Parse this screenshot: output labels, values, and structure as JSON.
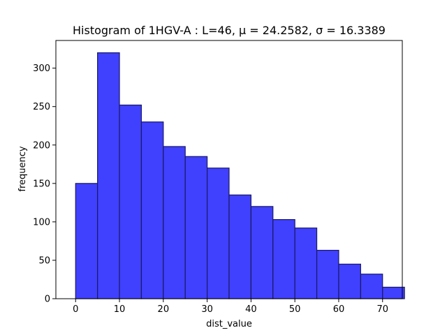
{
  "chart_data": {
    "type": "bar",
    "title": "Histogram of 1HGV-A : L=46, μ = 24.2582, σ = 16.3389",
    "xlabel": "dist_value",
    "ylabel": "frequency",
    "xlim": [
      -4.5,
      74.5
    ],
    "ylim": [
      0,
      336
    ],
    "x_ticks": [
      0,
      10,
      20,
      30,
      40,
      50,
      60,
      70
    ],
    "y_ticks": [
      0,
      50,
      100,
      150,
      200,
      250,
      300
    ],
    "bins": [
      {
        "x0": 0.0,
        "x1": 5.0,
        "value": 150
      },
      {
        "x0": 5.0,
        "x1": 10.0,
        "value": 320
      },
      {
        "x0": 10.0,
        "x1": 15.0,
        "value": 252
      },
      {
        "x0": 15.0,
        "x1": 20.0,
        "value": 230
      },
      {
        "x0": 20.0,
        "x1": 25.0,
        "value": 198
      },
      {
        "x0": 25.0,
        "x1": 30.0,
        "value": 185
      },
      {
        "x0": 30.0,
        "x1": 35.0,
        "value": 170
      },
      {
        "x0": 35.0,
        "x1": 40.0,
        "value": 135
      },
      {
        "x0": 40.0,
        "x1": 45.0,
        "value": 120
      },
      {
        "x0": 45.0,
        "x1": 50.0,
        "value": 103
      },
      {
        "x0": 50.0,
        "x1": 55.0,
        "value": 92
      },
      {
        "x0": 55.0,
        "x1": 60.0,
        "value": 63
      },
      {
        "x0": 60.0,
        "x1": 65.0,
        "value": 45
      },
      {
        "x0": 65.0,
        "x1": 70.0,
        "value": 32
      },
      {
        "x0": 70.0,
        "x1": 75.0,
        "value": 15
      }
    ],
    "bar_fill": "#4040ff",
    "bar_edge": "#1a1a66",
    "grid": false,
    "legend": "none"
  }
}
